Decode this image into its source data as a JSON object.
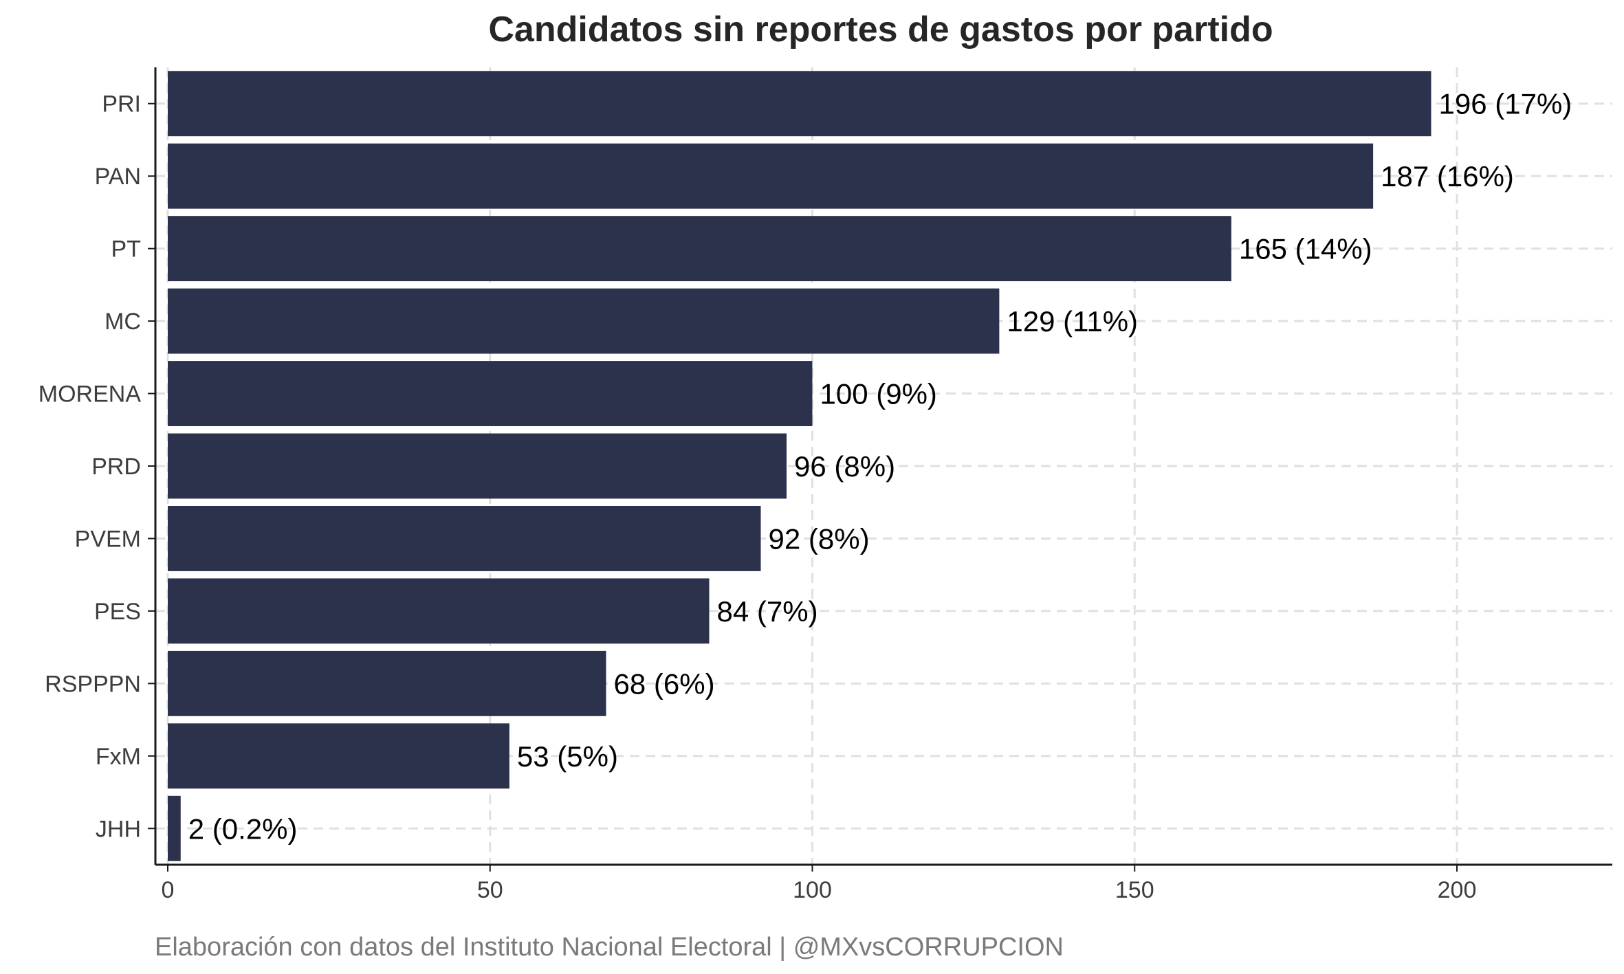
{
  "chart_data": {
    "type": "bar",
    "orientation": "horizontal",
    "title": "Candidatos sin reportes de gastos por partido",
    "xlabel": "",
    "ylabel": "",
    "caption": "Elaboración con datos del Instituto Nacional Electoral | @MXvsCORRUPCION",
    "categories": [
      "PRI",
      "PAN",
      "PT",
      "MC",
      "MORENA",
      "PRD",
      "PVEM",
      "PES",
      "RSPPPN",
      "FxM",
      "JHH"
    ],
    "values": [
      196,
      187,
      165,
      129,
      100,
      96,
      92,
      84,
      68,
      53,
      2
    ],
    "data_labels": [
      "196 (17%)",
      "187 (16%)",
      "165 (14%)",
      "129 (11%)",
      "100 (9%)",
      "96 (8%)",
      "92 (8%)",
      "84 (7%)",
      "68 (6%)",
      "53 (5%)",
      "2 (0.2%)"
    ],
    "xlim": [
      0,
      224
    ],
    "x_ticks": [
      0,
      50,
      100,
      150,
      200
    ],
    "x_tick_labels": [
      "0",
      "50",
      "100",
      "150",
      "200"
    ],
    "grid": true,
    "bar_color": "#2d324c",
    "grid_color": "#e0e0e0"
  }
}
